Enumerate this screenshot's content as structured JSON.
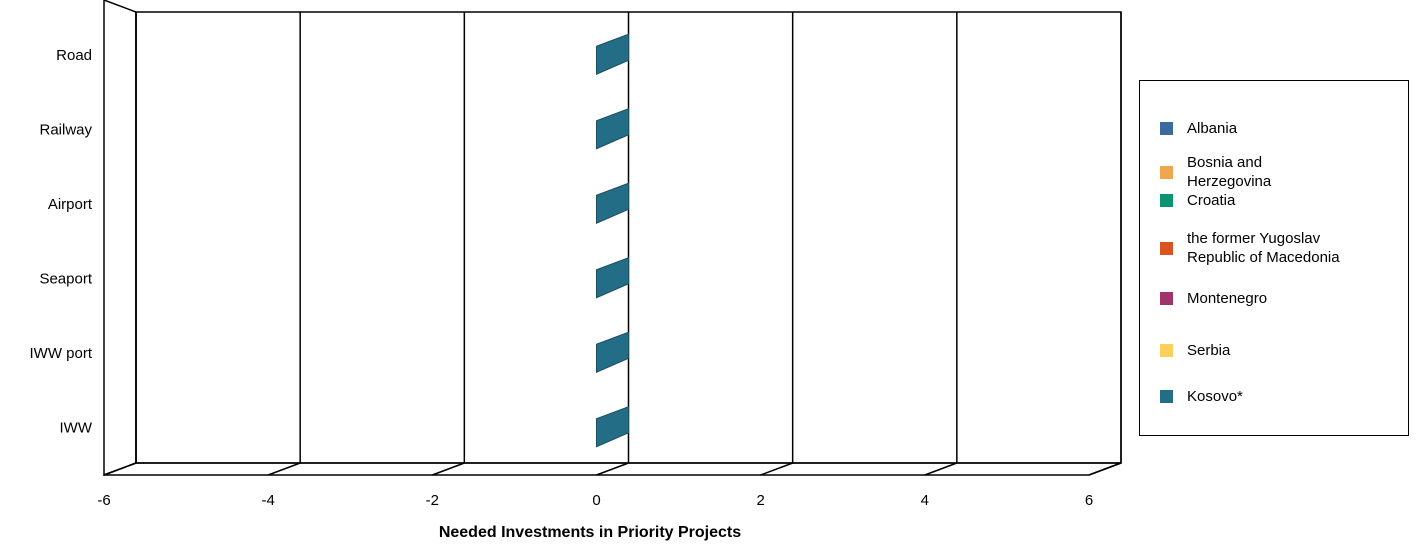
{
  "chart_data": {
    "type": "bar",
    "orientation": "horizontal",
    "style": "3d",
    "categories": [
      "Road",
      "Railway",
      "Airport",
      "Seaport",
      "IWW port",
      "IWW"
    ],
    "xlabel": "Needed Investments in Priority Projects",
    "xlim": [
      -6,
      6
    ],
    "xticks": [
      "-6",
      "-4",
      "-2",
      "0",
      "2",
      "4",
      "6"
    ],
    "grid": true,
    "legend_position": "right",
    "series": [
      {
        "name": "Albania",
        "color": "#3b6a9c",
        "values": [
          0,
          0,
          0,
          0,
          0,
          0
        ]
      },
      {
        "name": "Bosnia and Herzegovina",
        "color": "#f0a64c",
        "values": [
          0,
          0,
          0,
          0,
          0,
          0
        ]
      },
      {
        "name": "Croatia",
        "color": "#0b9472",
        "values": [
          0,
          0,
          0,
          0,
          0,
          0
        ]
      },
      {
        "name": "the former Yugoslav Republic of Macedonia",
        "color": "#d95420",
        "values": [
          0,
          0,
          0,
          0,
          0,
          0
        ]
      },
      {
        "name": "Montenegro",
        "color": "#a0336a",
        "values": [
          0,
          0,
          0,
          0,
          0,
          0
        ]
      },
      {
        "name": "Serbia",
        "color": "#fcd05a",
        "values": [
          0,
          0,
          0,
          0,
          0,
          0
        ]
      },
      {
        "name": "Kosovo*",
        "color": "#236e86",
        "values": [
          0,
          0,
          0,
          0,
          0,
          0
        ]
      }
    ]
  },
  "legend": {
    "items": [
      {
        "lines": [
          "Albania"
        ],
        "color": "#3b6a9c"
      },
      {
        "lines": [
          "Bosnia and",
          "Herzegovina"
        ],
        "color": "#f0a64c"
      },
      {
        "lines": [
          "Croatia"
        ],
        "color": "#0b9472"
      },
      {
        "lines": [
          "the former Yugoslav",
          "Republic of Macedonia"
        ],
        "color": "#d95420"
      },
      {
        "lines": [
          "Montenegro"
        ],
        "color": "#a0336a"
      },
      {
        "lines": [
          "Serbia"
        ],
        "color": "#fcd05a"
      },
      {
        "lines": [
          "Kosovo*"
        ],
        "color": "#236e86"
      }
    ]
  }
}
